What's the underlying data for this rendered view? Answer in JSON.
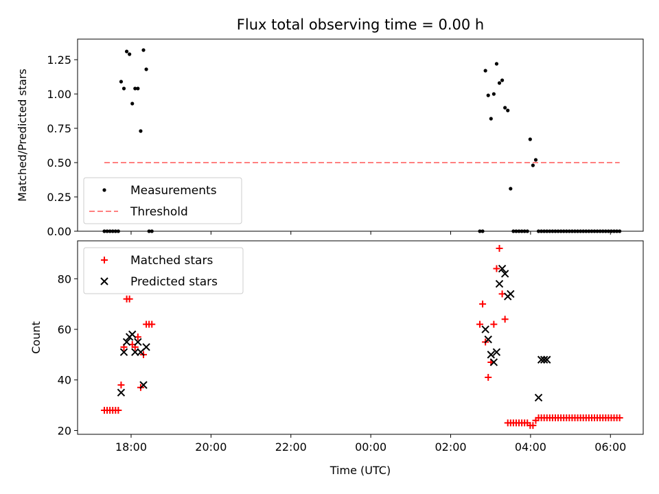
{
  "chart_data": [
    {
      "type": "scatter",
      "title": "Flux total observing time = 0.00 h",
      "xlabel": "",
      "ylabel": "Matched/Predicted stars",
      "ylim": [
        0,
        1.4
      ],
      "xlim_hours_since_17": [
        -0.34,
        13.82
      ],
      "yticks": [
        "0.00",
        "0.25",
        "0.50",
        "0.75",
        "1.00",
        "1.25"
      ],
      "legend_position": "lower-left",
      "series": [
        {
          "name": "Measurements",
          "kind": "points",
          "color": "#000000",
          "x_hours_since_17": [
            0.33,
            0.4,
            0.47,
            0.54,
            0.61,
            0.68,
            0.75,
            0.82,
            0.89,
            0.96,
            1.03,
            1.1,
            1.17,
            1.24,
            1.31,
            1.38,
            1.45,
            1.52,
            9.73,
            9.8,
            9.87,
            9.94,
            10.01,
            10.08,
            10.15,
            10.22,
            10.29,
            10.36,
            10.43,
            10.5,
            10.57,
            10.64,
            10.71,
            10.78,
            10.85,
            10.92,
            10.99,
            11.06,
            11.13,
            11.2,
            11.27,
            11.34,
            11.41,
            11.48,
            11.55,
            11.62,
            11.69,
            11.76,
            11.83,
            11.9,
            11.97,
            12.04,
            12.11,
            12.18,
            12.25,
            12.32,
            12.39,
            12.46,
            12.53,
            12.6,
            12.67,
            12.74,
            12.81,
            12.88,
            12.95,
            13.02,
            13.09,
            13.16,
            13.23
          ],
          "y": [
            0,
            0,
            0,
            0,
            0,
            0,
            1.09,
            1.04,
            1.31,
            1.29,
            0.93,
            1.04,
            1.04,
            0.73,
            1.32,
            1.18,
            0,
            0,
            0,
            0,
            1.17,
            0.99,
            0.82,
            1.0,
            1.22,
            1.08,
            1.1,
            0.9,
            0.88,
            0.31,
            0,
            0,
            0,
            0,
            0,
            0,
            0.67,
            0.48,
            0.52,
            0,
            0,
            0,
            0,
            0,
            0,
            0,
            0,
            0,
            0,
            0,
            0,
            0,
            0,
            0,
            0,
            0,
            0,
            0,
            0,
            0,
            0,
            0,
            0,
            0,
            0,
            0,
            0,
            0,
            0
          ]
        },
        {
          "name": "Threshold",
          "kind": "dashed-line",
          "color": "#ff7f7f",
          "x_hours_since_17": [
            0.33,
            13.23
          ],
          "y": [
            0.5,
            0.5
          ]
        }
      ]
    },
    {
      "type": "scatter",
      "title": "",
      "xlabel": "Time (UTC)",
      "ylabel": "Count",
      "ylim": [
        18.5,
        95
      ],
      "xlim_hours_since_17": [
        -0.34,
        13.82
      ],
      "yticks": [
        "20",
        "40",
        "60",
        "80"
      ],
      "xticks": [
        "18:00",
        "20:00",
        "22:00",
        "00:00",
        "02:00",
        "04:00",
        "06:00"
      ],
      "legend_position": "upper-left",
      "series": [
        {
          "name": "Matched stars",
          "kind": "plus",
          "color": "#ff0000",
          "x_hours_since_17": [
            0.33,
            0.4,
            0.47,
            0.54,
            0.61,
            0.68,
            0.75,
            0.82,
            0.89,
            0.96,
            1.03,
            1.1,
            1.17,
            1.24,
            1.31,
            1.38,
            1.45,
            1.52,
            9.73,
            9.8,
            9.87,
            9.94,
            10.01,
            10.08,
            10.15,
            10.22,
            10.29,
            10.36,
            10.43,
            10.5,
            10.57,
            10.64,
            10.71,
            10.78,
            10.85,
            10.92,
            10.99,
            11.06,
            11.13,
            11.2,
            11.27,
            11.34,
            11.41,
            11.48,
            11.55,
            11.62,
            11.69,
            11.76,
            11.83,
            11.9,
            11.97,
            12.04,
            12.11,
            12.18,
            12.25,
            12.32,
            12.39,
            12.46,
            12.53,
            12.6,
            12.67,
            12.74,
            12.81,
            12.88,
            12.95,
            13.02,
            13.09,
            13.16,
            13.23
          ],
          "y": [
            28,
            28,
            28,
            28,
            28,
            28,
            38,
            53,
            72,
            72,
            54,
            53,
            57,
            37,
            50,
            62,
            62,
            62,
            62,
            70,
            55,
            41,
            47,
            62,
            84,
            92,
            74,
            64,
            23,
            23,
            23,
            23,
            23,
            23,
            23,
            23,
            22,
            22,
            24,
            25,
            25,
            25,
            25,
            25,
            25,
            25,
            25,
            25,
            25,
            25,
            25,
            25,
            25,
            25,
            25,
            25,
            25,
            25,
            25,
            25,
            25,
            25,
            25,
            25,
            25,
            25,
            25,
            25,
            25
          ]
        },
        {
          "name": "Predicted stars",
          "kind": "x",
          "color": "#000000",
          "x_hours_since_17": [
            0.75,
            0.82,
            0.89,
            0.96,
            1.03,
            1.1,
            1.17,
            1.24,
            1.31,
            1.38,
            9.87,
            9.94,
            10.01,
            10.08,
            10.15,
            10.22,
            10.29,
            10.36,
            10.43,
            10.5,
            11.2,
            11.27,
            11.34,
            11.41
          ],
          "y": [
            35,
            51,
            55,
            57,
            58,
            51,
            55,
            51,
            38,
            53,
            60,
            56,
            50,
            47,
            51,
            78,
            84,
            82,
            73,
            74,
            33,
            48,
            48,
            48
          ]
        }
      ]
    }
  ]
}
